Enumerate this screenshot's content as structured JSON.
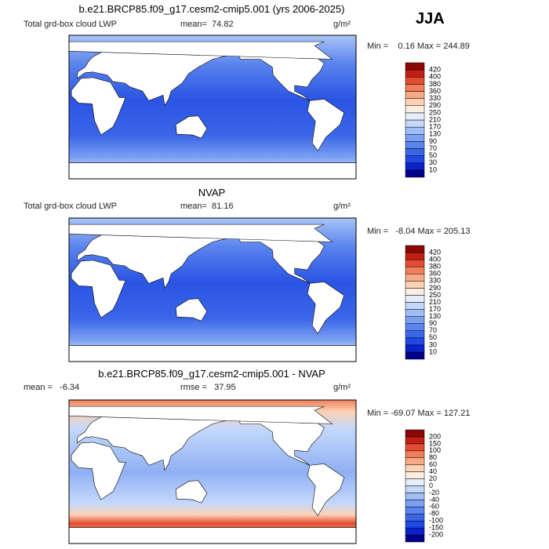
{
  "season": "JJA",
  "panels": [
    {
      "title": "b.e21.BRCP85.f09_g17.cesm2-cmip5.001 (yrs 2006-2025)",
      "variable": "Total grd-box cloud LWP",
      "stat_1": "mean=  74.82",
      "units": "g/m²",
      "range": "Min =    0.16 Max = 244.89",
      "colorbar": {
        "levels": [
          10,
          30,
          50,
          70,
          90,
          130,
          170,
          210,
          250,
          290,
          330,
          360,
          380,
          400,
          420
        ],
        "colors": [
          "#00008a",
          "#0a22cc",
          "#1f48e4",
          "#3b66e8",
          "#5a84ee",
          "#7ba0f2",
          "#a0bef6",
          "#c4d8fa",
          "#e6eefc",
          "#fdeee2",
          "#fbd2b4",
          "#f7aa84",
          "#f07e5a",
          "#e34c30",
          "#c41e12",
          "#8a0806"
        ]
      }
    },
    {
      "title": "NVAP",
      "variable": "Total grd-box cloud LWP",
      "stat_1": "mean=  81.16",
      "units": "g/m²",
      "range": "Min =   -8.04 Max = 205.13",
      "colorbar": {
        "levels": [
          10,
          30,
          50,
          70,
          90,
          130,
          170,
          210,
          250,
          290,
          330,
          360,
          380,
          400,
          420
        ],
        "colors": [
          "#00008a",
          "#0a22cc",
          "#1f48e4",
          "#3b66e8",
          "#5a84ee",
          "#7ba0f2",
          "#a0bef6",
          "#c4d8fa",
          "#e6eefc",
          "#fdeee2",
          "#fbd2b4",
          "#f7aa84",
          "#f07e5a",
          "#e34c30",
          "#c41e12",
          "#8a0806"
        ]
      }
    },
    {
      "title": "b.e21.BRCP85.f09_g17.cesm2-cmip5.001 - NVAP",
      "stat_1": "mean =   -6.34",
      "stat_2": "rmse =   37.95",
      "units": "g/m²",
      "range": "Min = -69.07 Max = 127.21",
      "colorbar": {
        "levels": [
          -200,
          -150,
          -100,
          -80,
          -60,
          -40,
          -20,
          0,
          20,
          40,
          60,
          80,
          100,
          150,
          200
        ],
        "colors": [
          "#00008a",
          "#0a22cc",
          "#1f48e4",
          "#3b66e8",
          "#5a84ee",
          "#7ba0f2",
          "#a0bef6",
          "#c4d8fa",
          "#e6eefc",
          "#fdeee2",
          "#fbd2b4",
          "#f7aa84",
          "#f07e5a",
          "#e34c30",
          "#c41e12",
          "#8a0806"
        ]
      }
    }
  ]
}
